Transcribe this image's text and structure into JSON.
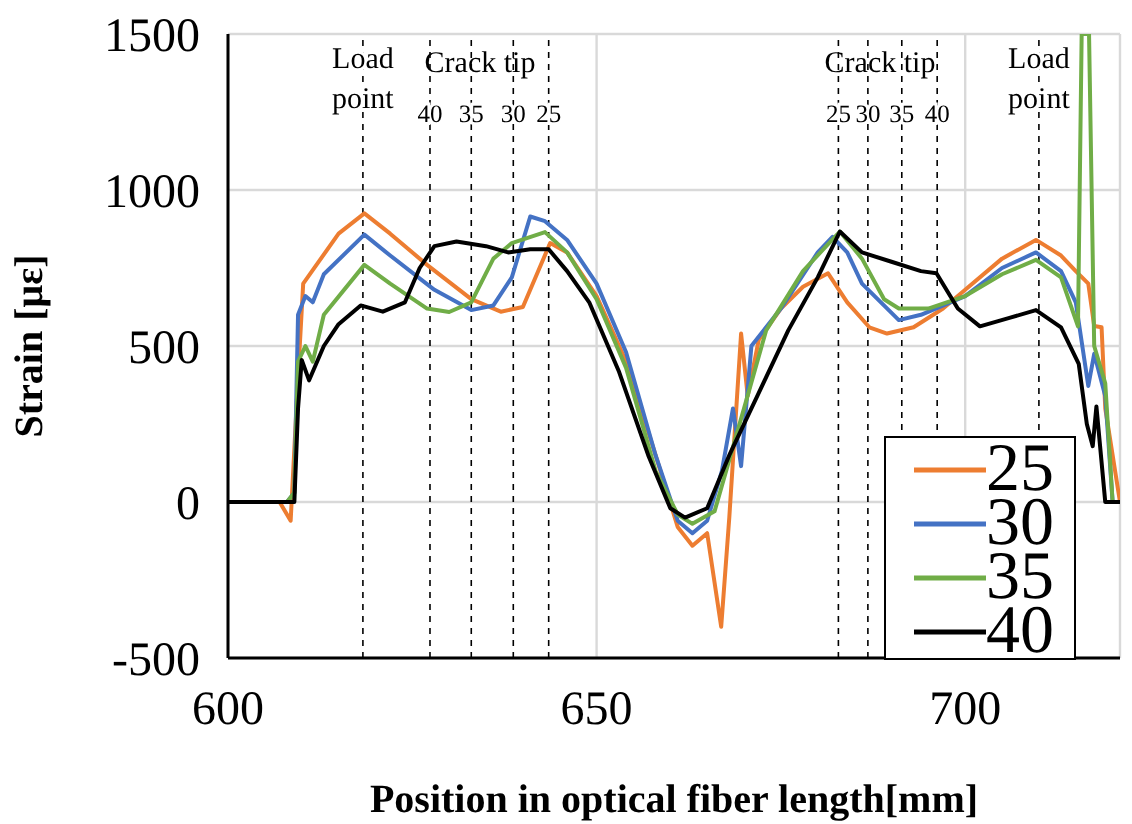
{
  "chart_data": {
    "type": "line",
    "xlabel": "Position in optical fiber length[mm]",
    "ylabel": "Strain [με]",
    "xlim": [
      600,
      721
    ],
    "xticks": [
      600,
      650,
      700
    ],
    "ylim": [
      -500,
      1500
    ],
    "yticks": [
      -500,
      0,
      500,
      1000,
      1500
    ],
    "grid": true,
    "legend": "bottom right",
    "marker": "none",
    "line_style": "solid",
    "annotations": [
      "Crack tip",
      "Crack tip",
      {
        "text": "40",
        "x": 627.4,
        "y": 1250
      },
      {
        "text": "35",
        "x": 633,
        "y": 1250
      },
      {
        "text": "30",
        "x": 638.7,
        "y": 1250
      },
      {
        "text": "25",
        "x": 643.5,
        "y": 1250
      },
      {
        "text": "25",
        "x": 682.8,
        "y": 1250
      },
      {
        "text": "30",
        "x": 686.8,
        "y": 1250
      },
      {
        "text": "35",
        "x": 691.4,
        "y": 1250
      },
      {
        "text": "40",
        "x": 696.2,
        "y": 1250
      }
    ],
    "ref_lines": [
      {
        "axis": "x",
        "value": 618.3,
        "label": "Load point",
        "line_style": "dashed",
        "color": "#000000"
      },
      {
        "axis": "x",
        "value": 627.4,
        "line_style": "dashed",
        "color": "#000000"
      },
      {
        "axis": "x",
        "value": 633,
        "line_style": "dashed",
        "color": "#000000"
      },
      {
        "axis": "x",
        "value": 638.7,
        "line_style": "dashed",
        "color": "#000000"
      },
      {
        "axis": "x",
        "value": 643.5,
        "line_style": "dashed",
        "color": "#000000"
      },
      {
        "axis": "x",
        "value": 682.8,
        "line_style": "dashed",
        "color": "#000000"
      },
      {
        "axis": "x",
        "value": 686.8,
        "line_style": "dashed",
        "color": "#000000"
      },
      {
        "axis": "x",
        "value": 691.4,
        "line_style": "dashed",
        "color": "#000000"
      },
      {
        "axis": "x",
        "value": 696.2,
        "line_style": "dashed",
        "color": "#000000"
      },
      {
        "axis": "x",
        "value": 710,
        "label": "Load point",
        "line_style": "dashed",
        "color": "#000000"
      }
    ],
    "series": [
      {
        "name": "25",
        "color": "#ed7d31",
        "x": [
          600,
          607,
          608.5,
          609.5,
          610.2,
          612,
          615,
          618.5,
          622,
          627,
          633,
          637,
          640,
          643.7,
          646,
          650,
          654,
          658,
          661,
          663,
          665,
          666.9,
          668,
          669.6,
          670.5,
          672,
          675,
          678,
          681.4,
          684,
          687,
          689.4,
          693,
          697,
          700,
          705,
          709.6,
          713,
          715,
          716.7,
          717.5,
          718.5,
          719,
          721
        ],
        "values": [
          0,
          0,
          -60,
          400,
          700,
          760,
          860,
          925,
          860,
          760,
          650,
          610,
          625,
          830,
          800,
          660,
          450,
          150,
          -80,
          -140,
          -100,
          -400,
          -50,
          540,
          340,
          520,
          620,
          690,
          733,
          640,
          560,
          540,
          560,
          620,
          680,
          780,
          840,
          790,
          740,
          700,
          564,
          560,
          300,
          0
        ]
      },
      {
        "name": "30",
        "color": "#4472c4",
        "x": [
          600,
          608,
          609,
          609.5,
          610.5,
          611.5,
          613,
          618.5,
          622,
          628,
          633,
          636,
          638.5,
          641,
          643,
          646,
          650,
          654,
          658,
          661,
          663,
          665,
          667,
          668.5,
          669.6,
          671,
          675,
          680,
          682,
          684,
          686,
          691,
          694,
          700,
          705,
          709.6,
          713,
          715,
          716.7,
          717.5,
          719,
          720,
          721
        ],
        "values": [
          0,
          0,
          30,
          600,
          660,
          640,
          730,
          857,
          790,
          680,
          615,
          630,
          720,
          915,
          900,
          840,
          700,
          480,
          150,
          -60,
          -100,
          -60,
          100,
          300,
          115,
          500,
          620,
          800,
          850,
          800,
          700,
          583,
          600,
          660,
          750,
          800,
          740,
          640,
          372,
          475,
          340,
          0,
          0
        ]
      },
      {
        "name": "35",
        "color": "#70ad47",
        "x": [
          600,
          608,
          609,
          609.5,
          610.5,
          611.5,
          613,
          618.5,
          622,
          627,
          630,
          633,
          636,
          638.5,
          643,
          646,
          650,
          654,
          658,
          661,
          663,
          666,
          670,
          673,
          678,
          683,
          686,
          689,
          691,
          695,
          700,
          705,
          709.6,
          713,
          715.3,
          715.8,
          716.8,
          717.5,
          719,
          720,
          721
        ],
        "values": [
          0,
          0,
          30,
          450,
          500,
          450,
          600,
          760,
          700,
          620,
          609,
          640,
          780,
          830,
          865,
          800,
          650,
          430,
          100,
          -40,
          -70,
          -30,
          300,
          550,
          740,
          867,
          780,
          650,
          620,
          620,
          660,
          730,
          776,
          720,
          563,
          1500,
          1500,
          500,
          380,
          0,
          0
        ]
      },
      {
        "name": "40",
        "color": "#000000",
        "x": [
          600,
          608,
          609,
          609.5,
          610,
          611,
          613,
          615,
          618,
          621,
          624,
          626,
          628,
          631,
          635,
          638,
          641,
          643.5,
          646,
          649,
          653,
          657,
          660,
          662,
          665,
          668,
          672,
          676,
          680,
          683,
          686,
          690,
          694,
          696.1,
          699,
          702,
          706,
          709.6,
          713,
          715.4,
          716.5,
          717.3,
          717.8,
          719,
          721
        ],
        "values": [
          0,
          0,
          0,
          300,
          455,
          390,
          500,
          570,
          630,
          610,
          640,
          750,
          820,
          835,
          820,
          800,
          810,
          810,
          740,
          640,
          420,
          150,
          -20,
          -50,
          -20,
          150,
          350,
          550,
          720,
          867,
          800,
          770,
          740,
          733,
          620,
          563,
          590,
          615,
          560,
          443,
          250,
          179,
          306,
          0,
          0
        ]
      }
    ]
  }
}
